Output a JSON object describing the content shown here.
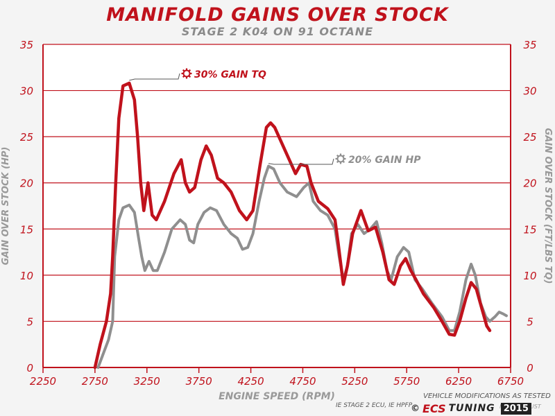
{
  "chart_data": {
    "type": "line",
    "title": "MANIFOLD GAINS OVER STOCK",
    "subtitle": "STAGE 2 K04 ON 91 OCTANE",
    "xlabel": "ENGINE SPEED (RPM)",
    "ylabel_left": "GAIN OVER STOCK (HP)",
    "ylabel_right": "GAIN OVER STOCK (FT/LBS TQ)",
    "xlim": [
      2250,
      6750
    ],
    "ylim": [
      0,
      35
    ],
    "x_ticks": [
      "2250",
      "2750",
      "3250",
      "3750",
      "4250",
      "4750",
      "5250",
      "5750",
      "6250",
      "6750"
    ],
    "y_ticks": [
      "0",
      "5",
      "10",
      "15",
      "20",
      "25",
      "30",
      "35"
    ],
    "grid": true,
    "series": [
      {
        "name": "TQ",
        "color": "#c0121c",
        "points": [
          [
            2750,
            0
          ],
          [
            2800,
            2.5
          ],
          [
            2860,
            5
          ],
          [
            2900,
            8
          ],
          [
            2920,
            12
          ],
          [
            2950,
            20
          ],
          [
            2980,
            27
          ],
          [
            3020,
            30.5
          ],
          [
            3080,
            30.8
          ],
          [
            3130,
            29
          ],
          [
            3160,
            25
          ],
          [
            3190,
            20
          ],
          [
            3220,
            17
          ],
          [
            3260,
            20
          ],
          [
            3300,
            16.5
          ],
          [
            3340,
            16
          ],
          [
            3420,
            18
          ],
          [
            3510,
            21
          ],
          [
            3580,
            22.5
          ],
          [
            3620,
            20
          ],
          [
            3660,
            19
          ],
          [
            3710,
            19.5
          ],
          [
            3770,
            22.5
          ],
          [
            3820,
            24
          ],
          [
            3870,
            23
          ],
          [
            3930,
            20.5
          ],
          [
            3990,
            20
          ],
          [
            4060,
            19
          ],
          [
            4140,
            17
          ],
          [
            4210,
            16
          ],
          [
            4270,
            17
          ],
          [
            4340,
            22
          ],
          [
            4400,
            26
          ],
          [
            4440,
            26.5
          ],
          [
            4480,
            26
          ],
          [
            4540,
            24.5
          ],
          [
            4620,
            22.5
          ],
          [
            4680,
            21
          ],
          [
            4730,
            22
          ],
          [
            4790,
            21.8
          ],
          [
            4830,
            20
          ],
          [
            4900,
            18
          ],
          [
            4990,
            17.2
          ],
          [
            5060,
            16
          ],
          [
            5090,
            13.5
          ],
          [
            5140,
            9
          ],
          [
            5180,
            11
          ],
          [
            5230,
            14.5
          ],
          [
            5310,
            17
          ],
          [
            5380,
            14.8
          ],
          [
            5450,
            15.2
          ],
          [
            5520,
            12.5
          ],
          [
            5580,
            9.5
          ],
          [
            5630,
            9
          ],
          [
            5690,
            11
          ],
          [
            5740,
            11.8
          ],
          [
            5790,
            10.5
          ],
          [
            5840,
            9.5
          ],
          [
            5910,
            8
          ],
          [
            6010,
            6.5
          ],
          [
            6090,
            5
          ],
          [
            6160,
            3.6
          ],
          [
            6210,
            3.5
          ],
          [
            6260,
            5
          ],
          [
            6320,
            7.5
          ],
          [
            6370,
            9.2
          ],
          [
            6420,
            8.5
          ],
          [
            6470,
            6.5
          ],
          [
            6520,
            4.5
          ],
          [
            6550,
            4
          ]
        ]
      },
      {
        "name": "HP",
        "color": "#8f8f8f",
        "points": [
          [
            2780,
            0
          ],
          [
            2830,
            1.5
          ],
          [
            2880,
            3
          ],
          [
            2920,
            5
          ],
          [
            2940,
            12
          ],
          [
            2980,
            16
          ],
          [
            3020,
            17.3
          ],
          [
            3080,
            17.6
          ],
          [
            3130,
            16.8
          ],
          [
            3170,
            14
          ],
          [
            3200,
            12
          ],
          [
            3230,
            10.5
          ],
          [
            3270,
            11.5
          ],
          [
            3310,
            10.5
          ],
          [
            3350,
            10.5
          ],
          [
            3420,
            12.5
          ],
          [
            3490,
            15
          ],
          [
            3570,
            16
          ],
          [
            3620,
            15.5
          ],
          [
            3660,
            13.8
          ],
          [
            3700,
            13.5
          ],
          [
            3740,
            15.5
          ],
          [
            3800,
            16.8
          ],
          [
            3860,
            17.3
          ],
          [
            3920,
            17
          ],
          [
            3990,
            15.5
          ],
          [
            4060,
            14.5
          ],
          [
            4120,
            14
          ],
          [
            4170,
            12.8
          ],
          [
            4220,
            13
          ],
          [
            4270,
            14.5
          ],
          [
            4330,
            18
          ],
          [
            4380,
            20.5
          ],
          [
            4420,
            21.8
          ],
          [
            4470,
            21.5
          ],
          [
            4530,
            20
          ],
          [
            4600,
            19
          ],
          [
            4690,
            18.5
          ],
          [
            4760,
            19.5
          ],
          [
            4810,
            20
          ],
          [
            4850,
            18
          ],
          [
            4920,
            17
          ],
          [
            4990,
            16.5
          ],
          [
            5060,
            15
          ],
          [
            5100,
            12
          ],
          [
            5140,
            9.5
          ],
          [
            5180,
            11
          ],
          [
            5220,
            14.5
          ],
          [
            5280,
            15.5
          ],
          [
            5340,
            14.5
          ],
          [
            5400,
            15
          ],
          [
            5460,
            15.8
          ],
          [
            5510,
            13.5
          ],
          [
            5560,
            10.5
          ],
          [
            5600,
            9.5
          ],
          [
            5660,
            12
          ],
          [
            5720,
            13
          ],
          [
            5770,
            12.5
          ],
          [
            5830,
            9.5
          ],
          [
            5900,
            8.5
          ],
          [
            5990,
            7
          ],
          [
            6090,
            5.5
          ],
          [
            6160,
            4
          ],
          [
            6210,
            4
          ],
          [
            6260,
            6
          ],
          [
            6320,
            9.5
          ],
          [
            6370,
            11.2
          ],
          [
            6410,
            10
          ],
          [
            6460,
            7
          ],
          [
            6510,
            5.5
          ],
          [
            6550,
            5
          ],
          [
            6600,
            5.5
          ],
          [
            6640,
            6
          ],
          [
            6680,
            5.8
          ],
          [
            6710,
            5.6
          ]
        ]
      }
    ],
    "annotations": [
      {
        "text": "30% GAIN TQ",
        "x": 3080,
        "y": 30.8,
        "color": "#c0121c",
        "icon": "gear-icon"
      },
      {
        "text": "20% GAIN HP",
        "x": 4420,
        "y": 21.8,
        "color": "#8f8f8f",
        "icon": "gear-icon"
      }
    ]
  },
  "footer": {
    "note_1": "VEHICLE MODIFICATIONS AS TESTED",
    "note_2": "IE STAGE 2 ECU, IE HPFP",
    "note_3": "FULL EXHAUST",
    "copyright": "©",
    "brand_1": "ECS",
    "brand_2": "TUNING",
    "year": "2015"
  }
}
